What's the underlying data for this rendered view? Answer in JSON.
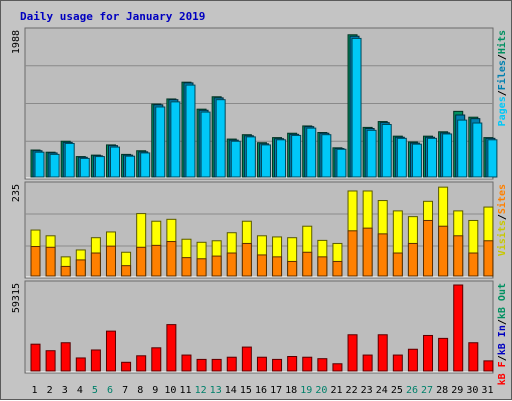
{
  "title": "Daily usage for January 2019",
  "colors": {
    "background": "#c4c4c4",
    "plot": "#bdbdbd",
    "hits": "#009060",
    "files": "#0080b0",
    "pages": "#00c8f8",
    "visits": "#ffff00",
    "sites": "#ff8000",
    "kbytes": "#ff0000",
    "title": "#0000c0",
    "weekend": "#00806a",
    "weekday": "#000000"
  },
  "chart_data": [
    {
      "type": "bar",
      "name": "hits-files-pages",
      "y_max_label": "1988",
      "y_max": 1988,
      "right_labels": [
        "Pages",
        "/",
        "Files",
        "/",
        "Hits"
      ],
      "right_label_colors": [
        "#00c8f8",
        "#000000",
        "#0080b0",
        "#000000",
        "#009060"
      ],
      "categories": [
        "1",
        "2",
        "3",
        "4",
        "5",
        "6",
        "7",
        "8",
        "9",
        "10",
        "11",
        "12",
        "13",
        "14",
        "15",
        "16",
        "17",
        "18",
        "19",
        "20",
        "21",
        "22",
        "23",
        "24",
        "25",
        "26",
        "27",
        "28",
        "29",
        "30",
        "31"
      ],
      "series": [
        {
          "name": "Hits",
          "values": [
            370,
            340,
            490,
            280,
            300,
            440,
            310,
            360,
            1000,
            1070,
            1300,
            930,
            1100,
            520,
            580,
            470,
            540,
            600,
            700,
            610,
            400,
            1950,
            680,
            760,
            560,
            480,
            560,
            620,
            900,
            820,
            540
          ]
        },
        {
          "name": "Files",
          "values": [
            360,
            330,
            475,
            270,
            290,
            430,
            300,
            345,
            990,
            1060,
            1290,
            915,
            1085,
            505,
            565,
            455,
            525,
            585,
            690,
            600,
            390,
            1930,
            665,
            745,
            545,
            465,
            545,
            605,
            850,
            800,
            530
          ]
        },
        {
          "name": "Pages",
          "values": [
            340,
            310,
            460,
            255,
            280,
            410,
            285,
            330,
            960,
            1030,
            1260,
            890,
            1060,
            490,
            550,
            440,
            510,
            570,
            670,
            580,
            380,
            1900,
            640,
            720,
            530,
            450,
            530,
            590,
            780,
            740,
            510
          ]
        }
      ]
    },
    {
      "type": "bar",
      "name": "visits-sites",
      "y_max_label": "235",
      "y_max": 235,
      "right_labels": [
        "Visits",
        "/",
        "Sites"
      ],
      "right_label_colors": [
        "#c8c800",
        "#000000",
        "#ff8000"
      ],
      "categories": [
        "1",
        "2",
        "3",
        "4",
        "5",
        "6",
        "7",
        "8",
        "9",
        "10",
        "11",
        "12",
        "13",
        "14",
        "15",
        "16",
        "17",
        "18",
        "19",
        "20",
        "21",
        "22",
        "23",
        "24",
        "25",
        "26",
        "27",
        "28",
        "29",
        "30",
        "31"
      ],
      "series": [
        {
          "name": "Visits",
          "values": [
            120,
            105,
            50,
            68,
            100,
            115,
            62,
            163,
            143,
            148,
            96,
            88,
            92,
            113,
            143,
            105,
            102,
            100,
            130,
            93,
            85,
            222,
            222,
            197,
            170,
            155,
            195,
            232,
            170,
            145,
            180
          ]
        },
        {
          "name": "Sites",
          "values": [
            77,
            75,
            25,
            42,
            60,
            78,
            27,
            75,
            80,
            90,
            48,
            45,
            52,
            60,
            85,
            55,
            50,
            38,
            62,
            50,
            38,
            118,
            125,
            110,
            60,
            85,
            145,
            130,
            105,
            60,
            92
          ]
        }
      ]
    },
    {
      "type": "bar",
      "name": "kbytes",
      "y_max_label": "59315",
      "y_max": 59315,
      "right_labels": [
        "kB F",
        "/",
        "kB In",
        "/",
        "kB Out"
      ],
      "right_label_colors": [
        "#ff0000",
        "#000000",
        "#0000c0",
        "#000000",
        "#009060"
      ],
      "categories": [
        "1",
        "2",
        "3",
        "4",
        "5",
        "6",
        "7",
        "8",
        "9",
        "10",
        "11",
        "12",
        "13",
        "14",
        "15",
        "16",
        "17",
        "18",
        "19",
        "20",
        "21",
        "22",
        "23",
        "24",
        "25",
        "26",
        "27",
        "28",
        "29",
        "30",
        "31"
      ],
      "series": [
        {
          "name": "kB F",
          "values": [
            18500,
            14000,
            19500,
            9000,
            14500,
            27500,
            6000,
            10500,
            16000,
            32000,
            11000,
            8000,
            8000,
            9500,
            16500,
            9500,
            8000,
            10000,
            9500,
            8500,
            5000,
            25000,
            11000,
            25000,
            11000,
            15000,
            24500,
            22500,
            59315,
            19500,
            7000
          ]
        }
      ]
    }
  ],
  "weekend_days": [
    "5",
    "6",
    "12",
    "13",
    "19",
    "20",
    "26",
    "27"
  ]
}
